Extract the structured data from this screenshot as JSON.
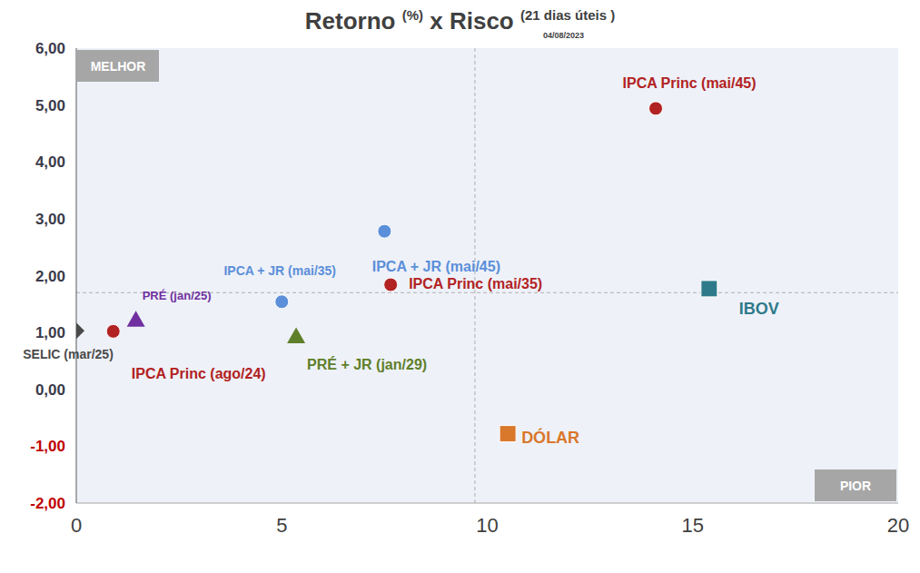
{
  "chart_data": {
    "type": "scatter",
    "title": "Retorno (%) x Risco (21 dias úteis )",
    "subtitle": "04/08/2023",
    "annotations": [
      {
        "text": "MELHOR",
        "position": "top-left"
      },
      {
        "text": "PIOR",
        "position": "bottom-right"
      }
    ],
    "xlim": [
      0,
      20
    ],
    "xticks": [
      0,
      5,
      10,
      15,
      20
    ],
    "ylim": [
      -2,
      6
    ],
    "yticks": [
      {
        "value": -2,
        "label": "-2,00"
      },
      {
        "value": -1,
        "label": "-1,00"
      },
      {
        "value": 0,
        "label": "0,00"
      },
      {
        "value": 1,
        "label": "1,00"
      },
      {
        "value": 2,
        "label": "2,00"
      },
      {
        "value": 3,
        "label": "3,00"
      },
      {
        "value": 4,
        "label": "4,00"
      },
      {
        "value": 5,
        "label": "5,00"
      },
      {
        "value": 6,
        "label": "6,00"
      }
    ],
    "x_reference": 9.7,
    "y_reference": 1.7,
    "grid": false,
    "series": [
      {
        "name": "SELIC (mar/25)",
        "color": "#4a4a4a",
        "marker": "diamond",
        "x": [
          0
        ],
        "y": [
          1.03
        ]
      },
      {
        "name": "IPCA Princ (ago/24)",
        "color": "#b22222",
        "marker": "circle",
        "x": [
          0.9
        ],
        "y": [
          1.02
        ]
      },
      {
        "name": "PRÉ (jan/25)",
        "color": "#7030a0",
        "marker": "triangle",
        "x": [
          1.45
        ],
        "y": [
          1.22
        ]
      },
      {
        "name": "IPCA + JR (mai/35)",
        "color": "#5b8fd9",
        "marker": "circle",
        "x": [
          5.0
        ],
        "y": [
          1.54
        ]
      },
      {
        "name": "PRÉ + JR (jan/29)",
        "color": "#5f7f2a",
        "marker": "triangle",
        "x": [
          5.35
        ],
        "y": [
          0.93
        ]
      },
      {
        "name": "IPCA + JR (mai/45)",
        "color": "#5b8fd9",
        "marker": "circle",
        "x": [
          7.5
        ],
        "y": [
          2.78
        ]
      },
      {
        "name": "IPCA Princ (mai/35)",
        "color": "#b22222",
        "marker": "circle",
        "x": [
          7.65
        ],
        "y": [
          1.84
        ]
      },
      {
        "name": "IPCA Princ (mai/45)",
        "color": "#b22222",
        "marker": "circle",
        "x": [
          14.1
        ],
        "y": [
          4.94
        ]
      },
      {
        "name": "IBOV",
        "color": "#2e7a8a",
        "marker": "square",
        "x": [
          15.4
        ],
        "y": [
          1.77
        ]
      },
      {
        "name": "DÓLAR",
        "color": "#d9772b",
        "marker": "square",
        "x": [
          10.5
        ],
        "y": [
          -0.78
        ]
      }
    ]
  }
}
